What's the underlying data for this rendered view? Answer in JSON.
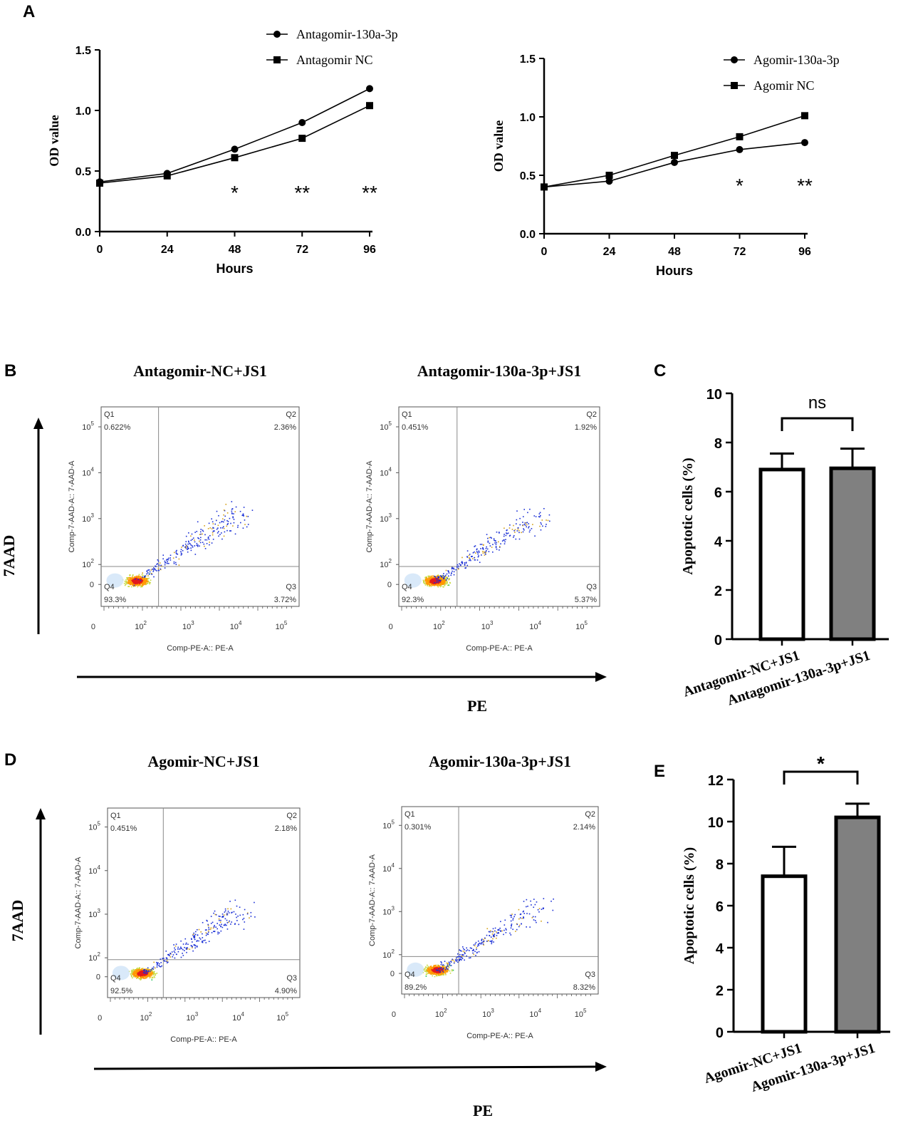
{
  "panels": {
    "A": "A",
    "B": "B",
    "C": "C",
    "D": "D",
    "E": "E"
  },
  "colors": {
    "line": "#000000",
    "bar_nc": "#ffffff",
    "bar_treat": "#808080"
  },
  "flow_common": {
    "y_axis_title": "Comp-7-AAD-A:: 7-AAD-A",
    "x_axis_title": "Comp-PE-A:: PE-A",
    "y_ticks": [
      "10^5",
      "10^4",
      "10^3",
      "10^2",
      "0"
    ],
    "x_ticks": [
      "0",
      "10^2",
      "10^3",
      "10^4",
      "10^5"
    ],
    "big_y_label": "7AAD",
    "big_x_label": "PE"
  },
  "flow_plots": [
    {
      "id": "B1",
      "title": "Antagomir-NC+JS1",
      "q1": "Q1",
      "q1_val": "0.622%",
      "q2": "Q2",
      "q2_val": "2.36%",
      "q3": "Q3",
      "q3_val": "3.72%",
      "q4": "Q4",
      "q4_val": "93.3%"
    },
    {
      "id": "B2",
      "title": "Antagomir-130a-3p+JS1",
      "q1": "Q1",
      "q1_val": "0.451%",
      "q2": "Q2",
      "q2_val": "1.92%",
      "q3": "Q3",
      "q3_val": "5.37%",
      "q4": "Q4",
      "q4_val": "92.3%"
    },
    {
      "id": "D1",
      "title": "Agomir-NC+JS1",
      "q1": "Q1",
      "q1_val": "0.451%",
      "q2": "Q2",
      "q2_val": "2.18%",
      "q3": "Q3",
      "q3_val": "4.90%",
      "q4": "Q4",
      "q4_val": "92.5%"
    },
    {
      "id": "D2",
      "title": "Agomir-130a-3p+JS1",
      "q1": "Q1",
      "q1_val": "0.301%",
      "q2": "Q2",
      "q2_val": "2.14%",
      "q3": "Q3",
      "q3_val": "8.32%",
      "q4": "Q4",
      "q4_val": "89.2%"
    }
  ],
  "chart_data": [
    {
      "id": "A1",
      "type": "line",
      "title": "",
      "x": [
        0,
        24,
        48,
        72,
        96
      ],
      "xticks": [
        "0",
        "24",
        "48",
        "72",
        "96"
      ],
      "xlabel": "Hours",
      "ylabel": "OD value",
      "ylim": [
        0,
        1.5
      ],
      "yticks": [
        "0.0",
        "0.5",
        "1.0",
        "1.5"
      ],
      "series": [
        {
          "name": "Antagomir-130a-3p",
          "marker": "circle",
          "values": [
            0.41,
            0.48,
            0.68,
            0.9,
            1.18
          ]
        },
        {
          "name": "Antagomir NC",
          "marker": "square",
          "values": [
            0.4,
            0.46,
            0.61,
            0.77,
            1.04
          ]
        }
      ],
      "annotations": [
        {
          "x": 48,
          "text": "*"
        },
        {
          "x": 72,
          "text": "**"
        },
        {
          "x": 96,
          "text": "**"
        }
      ],
      "legend": "top"
    },
    {
      "id": "A2",
      "type": "line",
      "title": "",
      "x": [
        0,
        24,
        48,
        72,
        96
      ],
      "xticks": [
        "0",
        "24",
        "48",
        "72",
        "96"
      ],
      "xlabel": "Hours",
      "ylabel": "OD value",
      "ylim": [
        0,
        1.5
      ],
      "yticks": [
        "0.0",
        "0.5",
        "1.0",
        "1.5"
      ],
      "series": [
        {
          "name": "Agomir-130a-3p",
          "marker": "circle",
          "values": [
            0.4,
            0.45,
            0.61,
            0.72,
            0.78
          ]
        },
        {
          "name": "Agomir NC",
          "marker": "square",
          "values": [
            0.4,
            0.5,
            0.67,
            0.83,
            1.01
          ]
        }
      ],
      "annotations": [
        {
          "x": 72,
          "text": "*"
        },
        {
          "x": 96,
          "text": "**"
        }
      ],
      "legend": "top"
    },
    {
      "id": "C",
      "type": "bar",
      "categories": [
        "Antagomir-NC+JS1",
        "Antagomir-130a-3p+JS1"
      ],
      "values": [
        6.9,
        6.95
      ],
      "errors": [
        0.65,
        0.8
      ],
      "ylabel": "Apoptotic cells (%)",
      "ylim": [
        0,
        10
      ],
      "yticks": [
        "0",
        "2",
        "4",
        "6",
        "8",
        "10"
      ],
      "significance": "ns"
    },
    {
      "id": "E",
      "type": "bar",
      "categories": [
        "Agomir-NC+JS1",
        "Agomir-130a-3p+JS1"
      ],
      "values": [
        7.4,
        10.2
      ],
      "errors": [
        1.4,
        0.65
      ],
      "ylabel": "Apoptotic cells (%)",
      "ylim": [
        0,
        12
      ],
      "yticks": [
        "0",
        "2",
        "4",
        "6",
        "8",
        "10",
        "12"
      ],
      "significance": "*"
    }
  ]
}
